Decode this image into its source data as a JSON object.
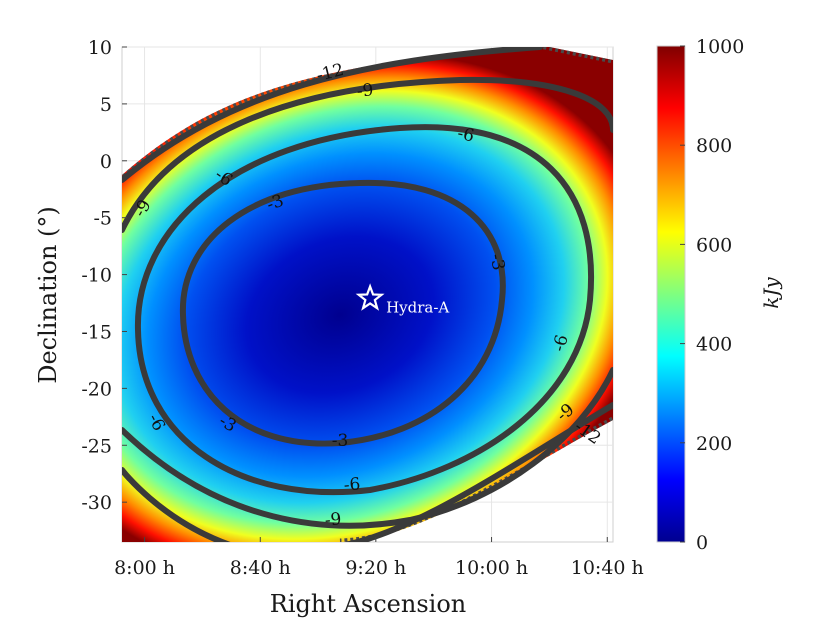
{
  "chart_data": {
    "type": "heatmap",
    "title": "",
    "xlabel": "Right Ascension",
    "ylabel": "Declination (°)",
    "x_ticks": [
      "8:00 h",
      "8:40 h",
      "9:20 h",
      "10:00 h",
      "10:40 h"
    ],
    "x_tick_values_hours": [
      8.0,
      8.667,
      9.333,
      10.0,
      10.667
    ],
    "xlim_hours": [
      7.87,
      10.7
    ],
    "y_ticks": [
      10,
      5,
      0,
      -5,
      -10,
      -15,
      -20,
      -25,
      -30
    ],
    "ylim": [
      -33.5,
      10
    ],
    "grid": true,
    "colorbar": {
      "label": "kJy",
      "range": [
        0,
        1000
      ],
      "ticks": [
        0,
        200,
        400,
        600,
        800,
        1000
      ],
      "colormap": "jet"
    },
    "contour_levels": [
      {
        "value": -3,
        "labels": [
          "-3",
          "-3",
          "-3",
          "-3"
        ]
      },
      {
        "value": -6,
        "labels": [
          "-6",
          "-6",
          "-6",
          "-6",
          "-6"
        ]
      },
      {
        "value": -9,
        "labels": [
          "-9",
          "-9",
          "-9",
          "-9"
        ]
      },
      {
        "value": -12,
        "labels": [
          "-12",
          "-12"
        ]
      }
    ],
    "annotations": [
      {
        "text": "Hydra-A",
        "ra_hours": 9.3,
        "dec": -12.1,
        "marker": "star"
      }
    ],
    "colors": {
      "contour": "#3a3a3a",
      "outer_rim": "#4a4a4a",
      "marker": "#ffffff"
    }
  }
}
